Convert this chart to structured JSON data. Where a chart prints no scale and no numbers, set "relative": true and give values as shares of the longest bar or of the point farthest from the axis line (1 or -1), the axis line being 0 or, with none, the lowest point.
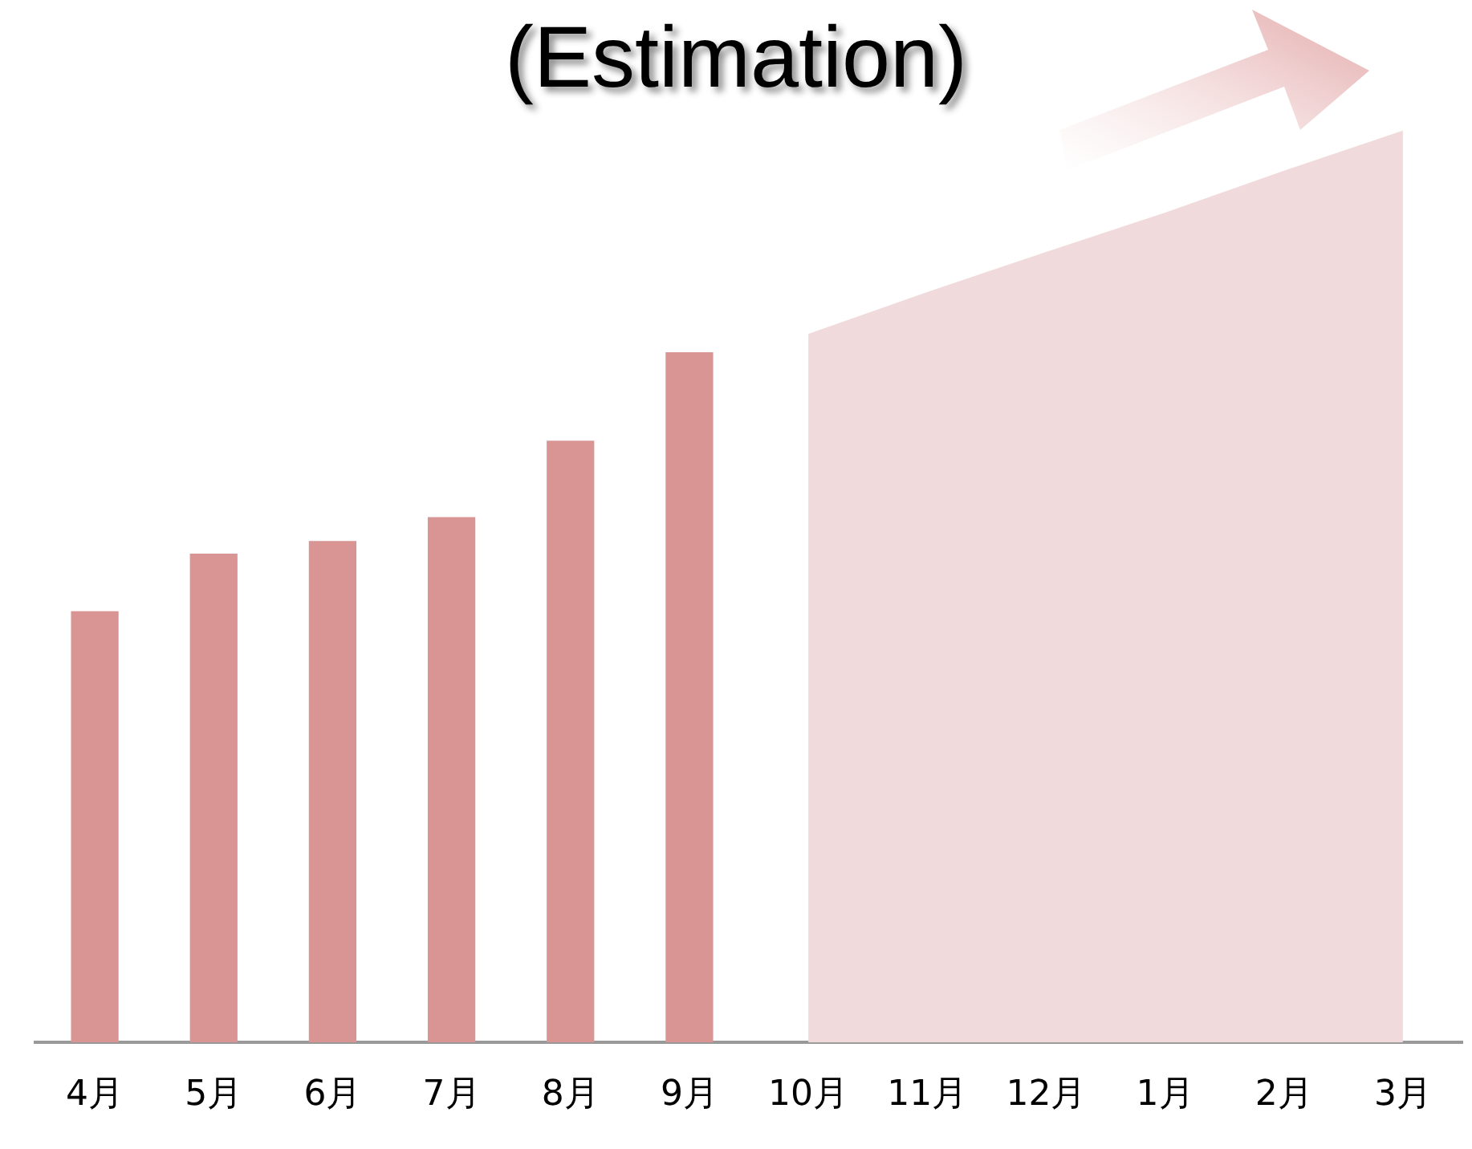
{
  "chart_data": {
    "type": "bar",
    "title": "(Estimation)",
    "relative": true,
    "grid": false,
    "legend": false,
    "categories": [
      "4月",
      "5月",
      "6月",
      "7月",
      "8月",
      "9月",
      "10月",
      "11月",
      "12月",
      "1月",
      "2月",
      "3月"
    ],
    "series": [
      {
        "color": "#d99594",
        "values": [
          0.473,
          0.536,
          0.55,
          0.576,
          0.66,
          0.757,
          null,
          null,
          null,
          null,
          null,
          null
        ]
      },
      {
        "type": "area",
        "color": "#f0dadb",
        "values": [
          null,
          null,
          null,
          null,
          null,
          null,
          0.777,
          0.823,
          0.867,
          0.91,
          0.956,
          1
        ]
      }
    ]
  }
}
